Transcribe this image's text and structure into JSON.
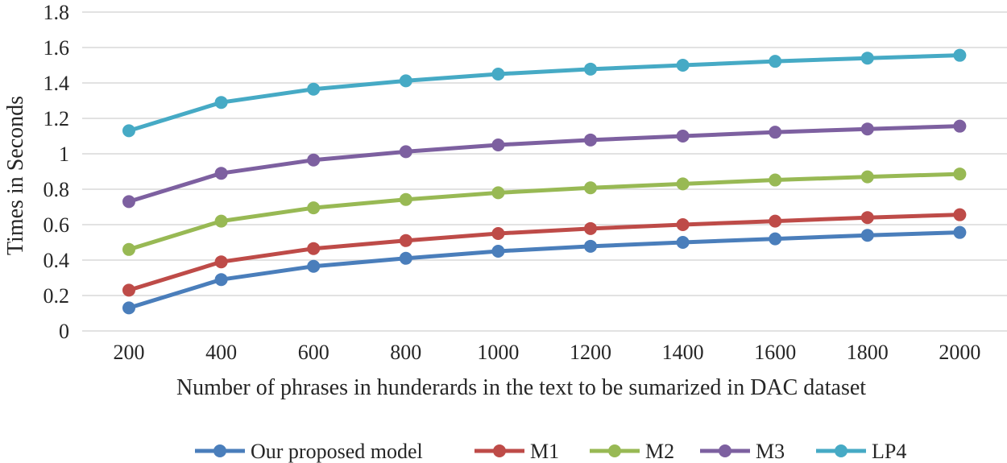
{
  "chart_data": {
    "type": "line",
    "title": "",
    "xlabel": "Number of phrases in hunderards in the text to be sumarized in DAC dataset",
    "ylabel": "Times in Seconds",
    "categories": [
      "200",
      "400",
      "600",
      "800",
      "1000",
      "1200",
      "1400",
      "1600",
      "1800",
      "2000"
    ],
    "ylim": [
      0,
      1.8
    ],
    "yticks": [
      "0",
      "0.2",
      "0.4",
      "0.6",
      "0.8",
      "1",
      "1.2",
      "1.4",
      "1.6",
      "1.8"
    ],
    "grid": true,
    "legend_position": "bottom",
    "series": [
      {
        "name": "Our proposed model",
        "color": "#4a7ebb",
        "values": [
          0.13,
          0.29,
          0.365,
          0.41,
          0.45,
          0.478,
          0.5,
          0.52,
          0.54,
          0.556
        ]
      },
      {
        "name": "M1",
        "color": "#be4b48",
        "values": [
          0.23,
          0.39,
          0.465,
          0.51,
          0.55,
          0.578,
          0.6,
          0.62,
          0.64,
          0.656
        ]
      },
      {
        "name": "M2",
        "color": "#98b954",
        "values": [
          0.46,
          0.62,
          0.695,
          0.742,
          0.78,
          0.808,
          0.83,
          0.852,
          0.87,
          0.886
        ]
      },
      {
        "name": "M3",
        "color": "#7d60a0",
        "values": [
          0.73,
          0.89,
          0.965,
          1.012,
          1.05,
          1.078,
          1.1,
          1.122,
          1.14,
          1.156
        ]
      },
      {
        "name": "LP4",
        "color": "#46aac5",
        "values": [
          1.13,
          1.29,
          1.365,
          1.412,
          1.45,
          1.478,
          1.5,
          1.522,
          1.54,
          1.556
        ]
      }
    ]
  }
}
